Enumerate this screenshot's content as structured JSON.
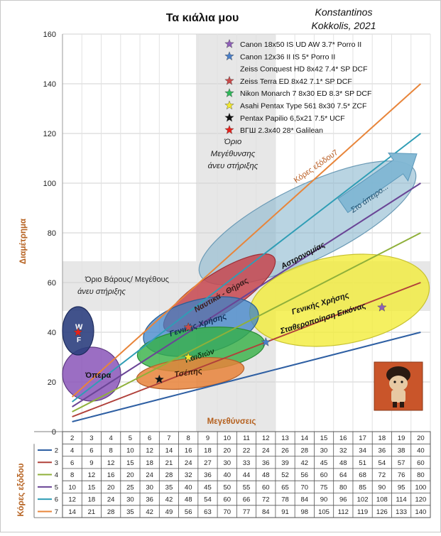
{
  "chart_data": {
    "type": "line",
    "title": "Τα κιάλια μου",
    "author_line1": "Konstantinos",
    "author_line2": "Kokkolis, 2021",
    "xlabel": "Μεγεθύνσεις",
    "ylabel": "Διαμέτρημα",
    "table_ylabel": "Κόρες εξόδου",
    "ylim": [
      0,
      160
    ],
    "yticks": [
      0,
      20,
      40,
      60,
      80,
      100,
      120,
      140,
      160
    ],
    "x": [
      2,
      3,
      4,
      5,
      6,
      7,
      8,
      9,
      10,
      11,
      12,
      13,
      14,
      15,
      16,
      17,
      18,
      19,
      20
    ],
    "grid": true,
    "legend_position": "top-right",
    "series": [
      {
        "name": "2",
        "color": "#2e5fa3",
        "values": [
          4,
          6,
          8,
          10,
          12,
          14,
          16,
          18,
          20,
          22,
          24,
          26,
          28,
          30,
          32,
          34,
          36,
          38,
          40
        ]
      },
      {
        "name": "3",
        "color": "#b0403a",
        "values": [
          6,
          9,
          12,
          15,
          18,
          21,
          24,
          27,
          30,
          33,
          36,
          39,
          42,
          45,
          48,
          51,
          54,
          57,
          60
        ]
      },
      {
        "name": "4",
        "color": "#8fb03a",
        "values": [
          8,
          12,
          16,
          20,
          24,
          28,
          32,
          36,
          40,
          44,
          48,
          52,
          56,
          60,
          64,
          68,
          72,
          76,
          80
        ]
      },
      {
        "name": "5",
        "color": "#6a4596",
        "values": [
          10,
          15,
          20,
          25,
          30,
          35,
          40,
          45,
          50,
          55,
          60,
          65,
          70,
          75,
          80,
          85,
          90,
          95,
          100
        ]
      },
      {
        "name": "6",
        "color": "#2f9db5",
        "values": [
          12,
          18,
          24,
          30,
          36,
          42,
          48,
          54,
          60,
          66,
          72,
          78,
          84,
          90,
          96,
          102,
          108,
          114,
          120
        ]
      },
      {
        "name": "7",
        "color": "#e8853a",
        "values": [
          14,
          21,
          28,
          35,
          42,
          49,
          56,
          63,
          70,
          77,
          84,
          91,
          98,
          105,
          112,
          119,
          126,
          133,
          140
        ]
      }
    ],
    "binoculars": [
      {
        "label": "Canon 18x50 IS UD AW 3.7* Porro II",
        "color": "#8e5fb8",
        "mag": 18,
        "aperture": 50
      },
      {
        "label": "Canon 12x36 II IS 5* Porro II",
        "color": "#4a7fc8",
        "mag": 12,
        "aperture": 36
      },
      {
        "label": "Zeiss Conquest HD 8x42 7.4* SP DCF",
        "color": "#2ea8c9",
        "mag": 8,
        "aperture": 42
      },
      {
        "label": "Zeiss Terra ED 8x42 7.1* SP DCF",
        "color": "#c94a4a",
        "mag": 8,
        "aperture": 42
      },
      {
        "label": "Nikon Monarch 7 8x30 ED 8.3* SP DCF",
        "color": "#2fb85a",
        "mag": 8,
        "aperture": 30
      },
      {
        "label": "Asahi Pentax Type 561 8x30 7.5* ZCF",
        "color": "#f2e830",
        "mag": 8,
        "aperture": 30
      },
      {
        "label": "Pentax Papilio 6,5x21 7.5* UCF",
        "color": "#111111",
        "mag": 6.5,
        "aperture": 21
      },
      {
        "label": "ΒΓШ 2.3x40 28* Galilean",
        "color": "#e8201a",
        "mag": 2.3,
        "aperture": 40
      }
    ],
    "annotations": {
      "mag_limit": "Όριο Μεγέθυνσης άνευ στήριξης",
      "weight_limit": "Όριο Βάρους/ Μεγέθους άνευ στήριξης",
      "pupil7": "Κόρες εξόδου7",
      "infinity": "Στο άπειρο...",
      "astronomy": "Αστρονομίας",
      "general_stab": "Γενικής Χρήσης Σταθεροποίηση Εικόνας",
      "naut_hunt": "Ναυτικά - Θήρας",
      "general": "Γενικής Χρήσης",
      "children": "Παιδιών",
      "pocket": "Τσέπης",
      "opera": "Όπερα",
      "w": "W",
      "f": "F"
    }
  }
}
